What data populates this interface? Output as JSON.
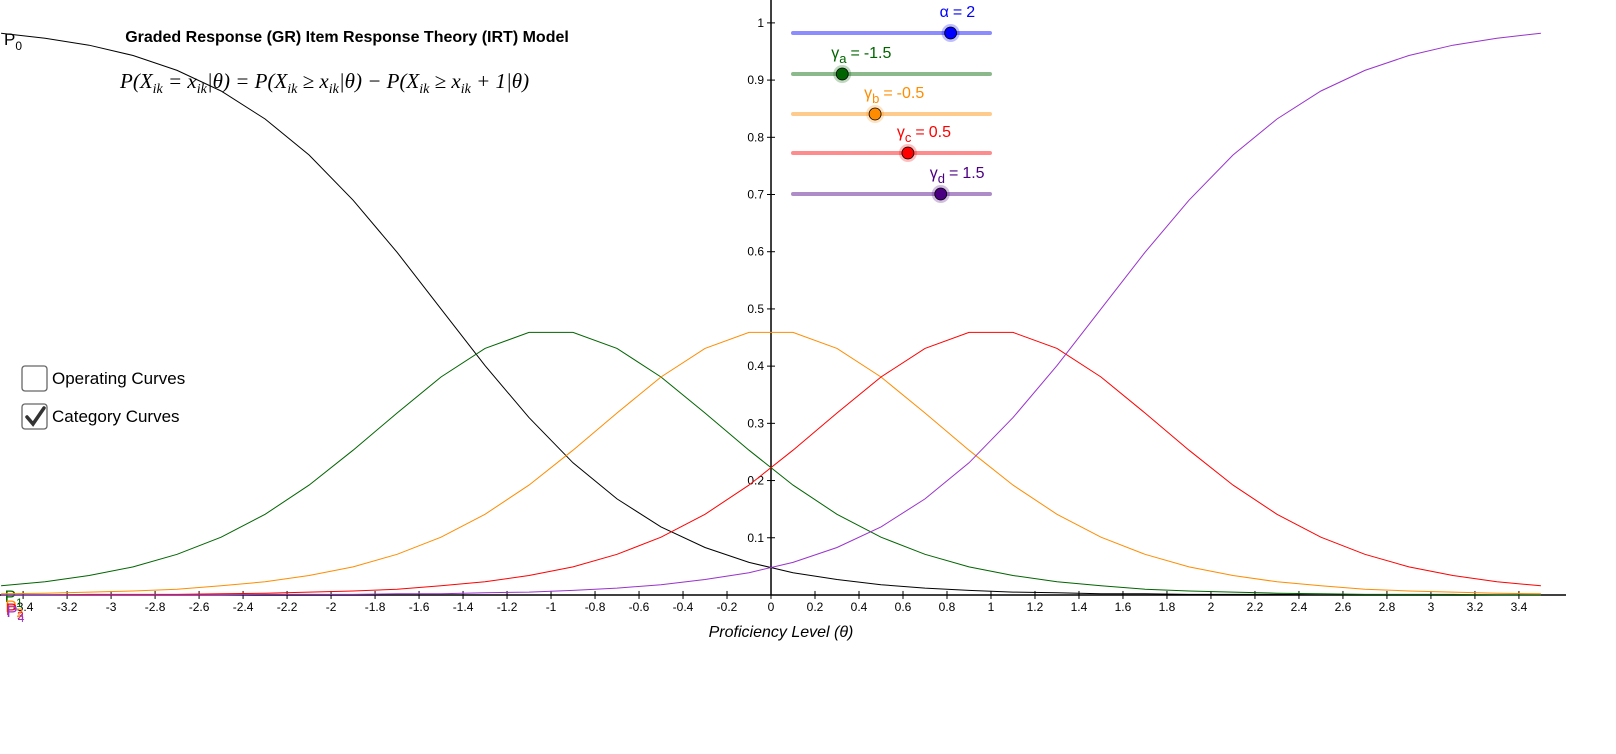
{
  "chart_data": {
    "type": "line",
    "title": "Graded Response (GR) Item Response Theory (IRT) Model",
    "formula_parts": [
      "P(X",
      "ik",
      " = x",
      "ik",
      "|θ) = P(X",
      "ik",
      " ≥ x",
      "ik",
      "|θ) − P(X",
      "ik",
      " ≥ x",
      "ik",
      " + 1|θ)"
    ],
    "x_label": "Proficiency Level (θ)",
    "xlim": [
      -3.505,
      3.614
    ],
    "ylim": [
      -0.278,
      1.04
    ],
    "xticks": [
      -3.4,
      -3.2,
      -3,
      -2.8,
      -2.6,
      -2.4,
      -2.2,
      -2,
      -1.8,
      -1.6,
      -1.4,
      -1.2,
      -1,
      -0.8,
      -0.6,
      -0.4,
      -0.2,
      0,
      0.2,
      0.4,
      0.6,
      0.8,
      1,
      1.2,
      1.4,
      1.6,
      1.8,
      2,
      2.2,
      2.4,
      2.6,
      2.8,
      3,
      3.2,
      3.4
    ],
    "yticks": [
      0.1,
      0.2,
      0.3,
      0.4,
      0.5,
      0.6,
      0.7,
      0.8,
      0.9,
      1
    ],
    "x": [
      -3.5,
      -3.3,
      -3.1,
      -2.9,
      -2.7,
      -2.5,
      -2.3,
      -2.1,
      -1.9,
      -1.7,
      -1.5,
      -1.3,
      -1.1,
      -0.9,
      -0.7,
      -0.5,
      -0.3,
      -0.1,
      0.1,
      0.3,
      0.5,
      0.7,
      0.9,
      1.1,
      1.3,
      1.5,
      1.7,
      1.9,
      2.1,
      2.3,
      2.5,
      2.7,
      2.9,
      3.1,
      3.3,
      3.5
    ],
    "series": [
      {
        "name": "P",
        "subscript": "0",
        "color": "#000000",
        "values": [
          0.982,
          0.973,
          0.961,
          0.943,
          0.917,
          0.881,
          0.832,
          0.769,
          0.69,
          0.599,
          0.5,
          0.401,
          0.31,
          0.231,
          0.168,
          0.119,
          0.083,
          0.057,
          0.039,
          0.027,
          0.018,
          0.012,
          0.008,
          0.005,
          0.004,
          0.002,
          0.002,
          0.001,
          0.001,
          0.001,
          0,
          0,
          0,
          0,
          0,
          0
        ]
      },
      {
        "name": "P",
        "subscript": "1",
        "color": "#006400",
        "values": [
          0.016,
          0.023,
          0.034,
          0.049,
          0.071,
          0.101,
          0.141,
          0.192,
          0.253,
          0.318,
          0.381,
          0.431,
          0.459,
          0.459,
          0.431,
          0.381,
          0.318,
          0.253,
          0.192,
          0.141,
          0.101,
          0.071,
          0.049,
          0.034,
          0.023,
          0.016,
          0.01,
          0.007,
          0.005,
          0.003,
          0.002,
          0.001,
          0.001,
          0.001,
          0,
          0
        ]
      },
      {
        "name": "P",
        "subscript": "2",
        "color": "#ff8c00",
        "values": [
          0.002,
          0.003,
          0.005,
          0.007,
          0.01,
          0.016,
          0.023,
          0.034,
          0.049,
          0.071,
          0.101,
          0.141,
          0.192,
          0.253,
          0.318,
          0.381,
          0.431,
          0.459,
          0.459,
          0.431,
          0.381,
          0.318,
          0.253,
          0.192,
          0.141,
          0.101,
          0.071,
          0.049,
          0.034,
          0.023,
          0.016,
          0.01,
          0.007,
          0.005,
          0.003,
          0.002
        ]
      },
      {
        "name": "P",
        "subscript": "3",
        "color": "#ff0000",
        "values": [
          0,
          0,
          0.001,
          0.001,
          0.001,
          0.002,
          0.003,
          0.005,
          0.007,
          0.01,
          0.016,
          0.023,
          0.034,
          0.049,
          0.071,
          0.101,
          0.141,
          0.192,
          0.253,
          0.318,
          0.381,
          0.431,
          0.459,
          0.459,
          0.431,
          0.381,
          0.318,
          0.253,
          0.192,
          0.141,
          0.101,
          0.071,
          0.049,
          0.034,
          0.023,
          0.016
        ]
      },
      {
        "name": "P",
        "subscript": "4",
        "color": "#9932cc",
        "values": [
          0,
          0,
          0,
          0,
          0,
          0,
          0.001,
          0.001,
          0.001,
          0.002,
          0.002,
          0.004,
          0.005,
          0.008,
          0.012,
          0.018,
          0.027,
          0.039,
          0.057,
          0.083,
          0.119,
          0.168,
          0.231,
          0.31,
          0.401,
          0.5,
          0.599,
          0.69,
          0.769,
          0.832,
          0.881,
          0.917,
          0.943,
          0.961,
          0.973,
          0.982
        ]
      }
    ],
    "sliders": [
      {
        "label": "α",
        "operator": "=",
        "value": 2,
        "min": 0,
        "max": 2.5,
        "color": "#0000ff"
      },
      {
        "label": "γ",
        "subscript": "a",
        "operator": "=",
        "value": -1.5,
        "min": -3,
        "max": 3,
        "color": "#006400"
      },
      {
        "label": "γ",
        "subscript": "b",
        "operator": "=",
        "value": -0.5,
        "min": -3,
        "max": 3,
        "color": "#ff8c00"
      },
      {
        "label": "γ",
        "subscript": "c",
        "operator": "=",
        "value": 0.5,
        "min": -3,
        "max": 3,
        "color": "#ff0000"
      },
      {
        "label": "γ",
        "subscript": "d",
        "operator": "=",
        "value": 1.5,
        "min": -3,
        "max": 3,
        "color": "#4b0082"
      }
    ],
    "checkboxes": [
      {
        "label": "Operating Curves",
        "checked": false
      },
      {
        "label": "Category Curves",
        "checked": true
      }
    ]
  }
}
